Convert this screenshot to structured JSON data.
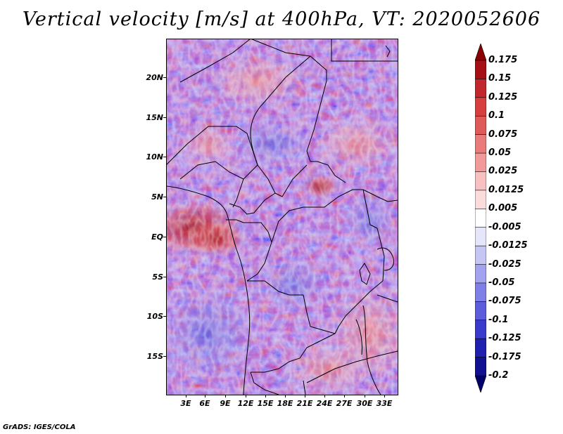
{
  "title": "Vertical velocity [m/s] at 400hPa, VT: 2020052606",
  "footer": "GrADS: IGES/COLA",
  "latitude_labels": [
    "20N",
    "15N",
    "10N",
    "5N",
    "EQ",
    "5S",
    "10S",
    "15S"
  ],
  "longitude_labels": [
    "3E",
    "6E",
    "9E",
    "12E",
    "15E",
    "18E",
    "21E",
    "24E",
    "27E",
    "30E",
    "33E"
  ],
  "colorbar": {
    "labels": [
      "0.175",
      "0.15",
      "0.125",
      "0.1",
      "0.075",
      "0.05",
      "0.025",
      "0.0125",
      "0.005",
      "-0.005",
      "-0.0125",
      "-0.025",
      "-0.05",
      "-0.075",
      "-0.1",
      "-0.125",
      "-0.175",
      "-0.2"
    ],
    "colors": [
      "#8b0000",
      "#a50f15",
      "#c1272d",
      "#d73f3f",
      "#e05a5a",
      "#ea7b7b",
      "#f29a9a",
      "#f8c0c0",
      "#fbdcdc",
      "#ffffff",
      "#e6e6fa",
      "#c6c6f5",
      "#a3a3f0",
      "#7f7fe8",
      "#5c5cdc",
      "#3a3acc",
      "#2020b0",
      "#101090",
      "#000066"
    ]
  }
}
